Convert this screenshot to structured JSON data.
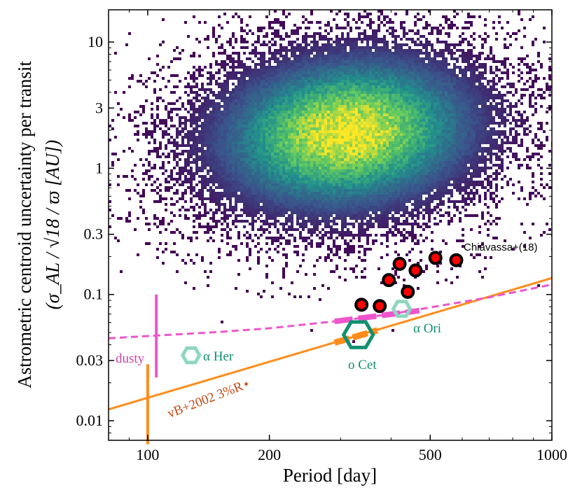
{
  "chart_data": {
    "type": "scatter",
    "title": "",
    "xlabel": "Period [day]",
    "ylabel_line1": "Astrometric centroid uncertainty per transit",
    "ylabel_line2": "(σ_AL / √18 / ϖ [AU])",
    "x_scale": "log",
    "y_scale": "log",
    "xlim": [
      80,
      1000
    ],
    "ylim": [
      0.007,
      18
    ],
    "x_ticks": [
      {
        "value": 100,
        "label": "100"
      },
      {
        "value": 200,
        "label": "200"
      },
      {
        "value": 500,
        "label": "500"
      },
      {
        "value": 1000,
        "label": "1000"
      }
    ],
    "y_ticks": [
      {
        "value": 0.01,
        "label": "0.01"
      },
      {
        "value": 0.03,
        "label": "0.03"
      },
      {
        "value": 0.1,
        "label": "0.1"
      },
      {
        "value": 0.3,
        "label": "0.3"
      },
      {
        "value": 1,
        "label": "1"
      },
      {
        "value": 3,
        "label": "3"
      },
      {
        "value": 10,
        "label": "10"
      }
    ],
    "histogram2d": {
      "description": "2D density histogram of sources (viridis colormap)",
      "center_period": 310,
      "center_sigma": 1.9,
      "colormap": [
        "#440154",
        "#3b528b",
        "#21918c",
        "#5ec962",
        "#fde725"
      ]
    },
    "chiavassa_points": {
      "name": "Chiavassa+(18)",
      "color": "#ff0000",
      "edge_color": "#000000",
      "x": [
        338,
        375,
        395,
        420,
        440,
        460,
        515,
        580
      ],
      "y": [
        0.083,
        0.081,
        0.13,
        0.175,
        0.105,
        0.155,
        0.195,
        0.187
      ]
    },
    "stars": [
      {
        "name": "α Her",
        "x": 128,
        "y": 0.033,
        "color": "#8fd6c0"
      },
      {
        "name": "α Ori",
        "x": 425,
        "y": 0.077,
        "color": "#8fd6c0"
      },
      {
        "name": "o Cet",
        "x": 332,
        "y": 0.048,
        "color": "#109070"
      }
    ],
    "lines": [
      {
        "name": "vB+2002 3%R⋆",
        "style": "solid",
        "color": "#ff8c1a",
        "x": [
          80,
          1000
        ],
        "y": [
          0.0123,
          0.135
        ]
      },
      {
        "name": "dusty",
        "style": "dashed",
        "color": "#ee55cc",
        "x": [
          80,
          150,
          200,
          300,
          400,
          500,
          700,
          1000
        ],
        "y": [
          0.045,
          0.0505,
          0.054,
          0.062,
          0.07,
          0.079,
          0.095,
          0.12
        ]
      }
    ],
    "vertical_bars": [
      {
        "label": "dusty",
        "x": 105,
        "ylow": 0.022,
        "yhigh": 0.1,
        "color": "#ee55cc"
      },
      {
        "label": "vB+2002",
        "x": 100,
        "ylow": 0.0065,
        "yhigh": 0.028,
        "color": "#ff8c1a"
      }
    ],
    "annotations": {
      "chiavassa": "Chiavassa+(18)",
      "dusty": "dusty",
      "vb2002": "vB+2002 3%R⋆",
      "alpha_her": "α Her",
      "alpha_ori": "α Ori",
      "o_cet": "o Cet"
    }
  }
}
